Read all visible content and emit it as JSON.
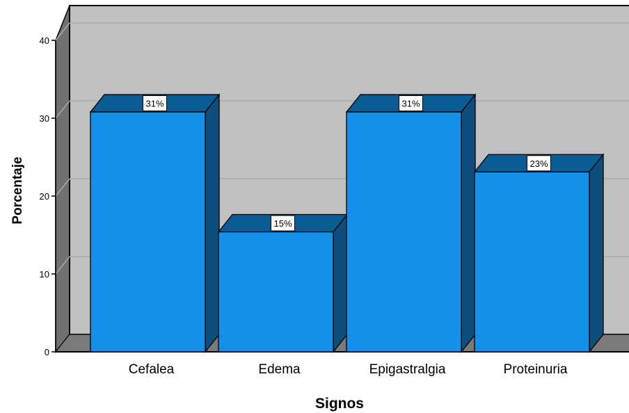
{
  "chart_data": {
    "type": "bar",
    "style": "3d",
    "xlabel": "Signos",
    "ylabel": "Porcentaje",
    "categories": [
      "Cefalea",
      "Edema",
      "Epigastralgia",
      "Proteinuria"
    ],
    "values": [
      30.8,
      15.4,
      30.8,
      23.1
    ],
    "data_labels": [
      "31%",
      "15%",
      "31%",
      "23%"
    ],
    "ylim": [
      0,
      40
    ],
    "yticks": [
      "0",
      "10",
      "20",
      "30",
      "40"
    ],
    "grid": true,
    "legend": "none"
  },
  "colors": {
    "bar_front": "#1490E8",
    "bar_top": "#0A5C94",
    "bar_side": "#0E4E7D",
    "plot_back": "#C0C0C0",
    "plot_left_wall": "#707070",
    "plot_floor": "#7A7A7A",
    "gridline": "#AAAAAA",
    "label_box": "#FFFFFF"
  }
}
